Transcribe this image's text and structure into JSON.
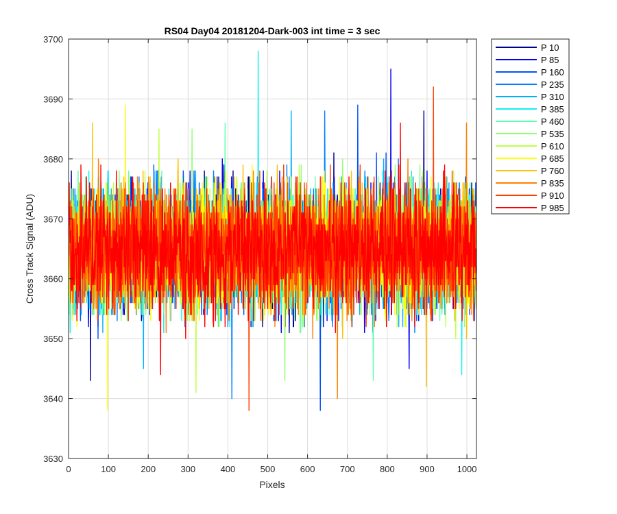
{
  "chart_data": {
    "type": "line",
    "title": "RS04 Day04 20181204-Dark-003 int time = 3 sec",
    "xlabel": "Pixels",
    "ylabel": "Cross Track Signal (ADU)",
    "xlim": [
      0,
      1024
    ],
    "ylim": [
      3630,
      3700
    ],
    "xticks": [
      0,
      100,
      200,
      300,
      400,
      500,
      600,
      700,
      800,
      900,
      1000
    ],
    "yticks": [
      3630,
      3640,
      3650,
      3660,
      3670,
      3680,
      3690,
      3700
    ],
    "grid": true,
    "legend_position": "outside-top-right",
    "x_points": 1024,
    "series": [
      {
        "name": "P 10",
        "color": "#00008f",
        "mean": 3665,
        "min": 3643,
        "max": 3688
      },
      {
        "name": "P 85",
        "color": "#0000ef",
        "mean": 3665,
        "min": 3645,
        "max": 3695
      },
      {
        "name": "P 160",
        "color": "#0050ff",
        "mean": 3665,
        "min": 3638,
        "max": 3689
      },
      {
        "name": "P 235",
        "color": "#0080ff",
        "mean": 3665,
        "min": 3640,
        "max": 3688
      },
      {
        "name": "P 310",
        "color": "#00b0ff",
        "mean": 3665,
        "min": 3645,
        "max": 3688
      },
      {
        "name": "P 385",
        "color": "#10f0f0",
        "mean": 3665,
        "min": 3644,
        "max": 3698
      },
      {
        "name": "P 460",
        "color": "#60ffb0",
        "mean": 3665,
        "min": 3643,
        "max": 3686
      },
      {
        "name": "P 535",
        "color": "#90ff70",
        "mean": 3665,
        "min": 3643,
        "max": 3685
      },
      {
        "name": "P 610",
        "color": "#c0ff40",
        "mean": 3665,
        "min": 3641,
        "max": 3685
      },
      {
        "name": "P 685",
        "color": "#ffff00",
        "mean": 3665,
        "min": 3638,
        "max": 3689
      },
      {
        "name": "P 760",
        "color": "#ffc000",
        "mean": 3665,
        "min": 3642,
        "max": 3686
      },
      {
        "name": "P 835",
        "color": "#ff8000",
        "mean": 3665,
        "min": 3640,
        "max": 3686
      },
      {
        "name": "P 910",
        "color": "#ff4000",
        "mean": 3665,
        "min": 3638,
        "max": 3692
      },
      {
        "name": "P 985",
        "color": "#ff0000",
        "mean": 3665,
        "min": 3644,
        "max": 3686
      }
    ]
  }
}
